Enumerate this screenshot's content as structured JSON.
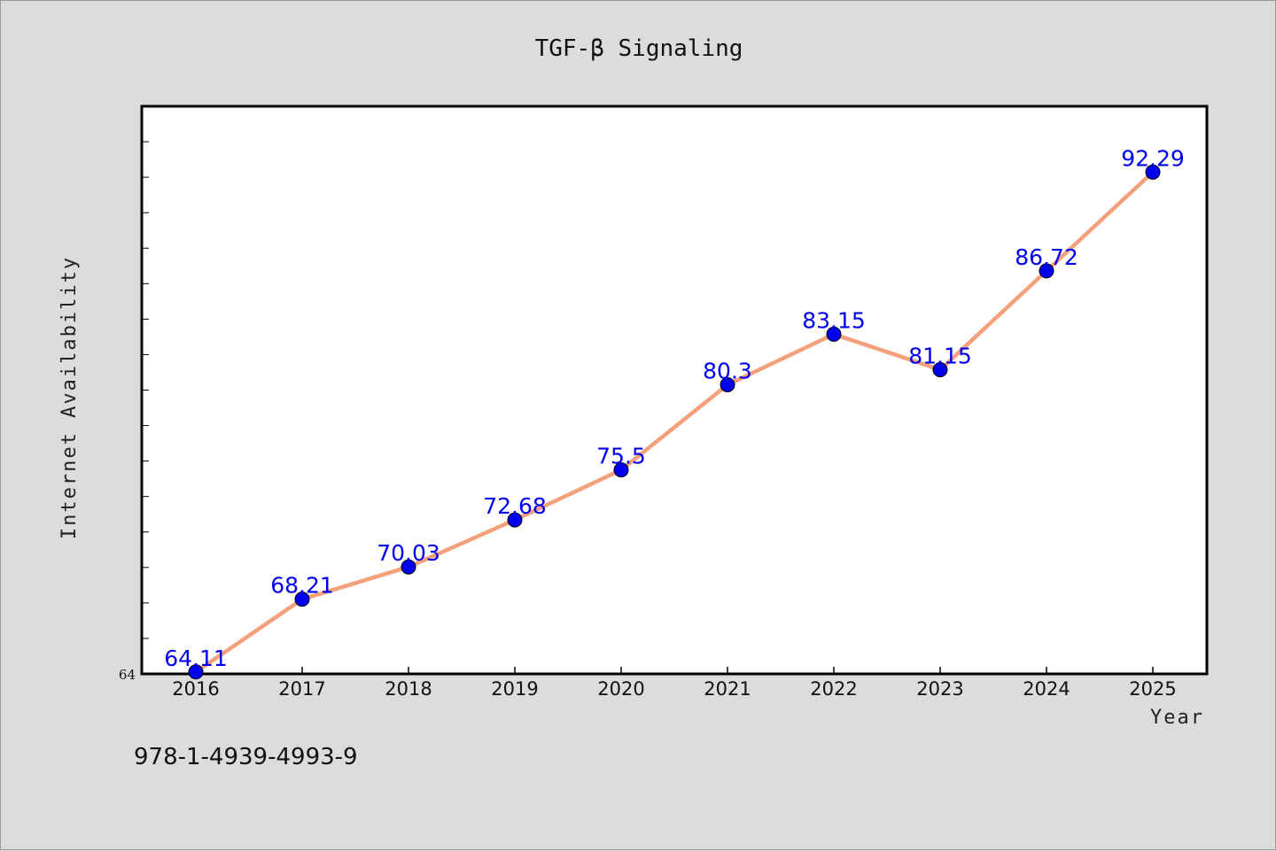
{
  "chart_data": {
    "type": "line",
    "title": "TGF-β Signaling",
    "xlabel": "Year",
    "ylabel": "Internet Availability",
    "categories": [
      "2016",
      "2017",
      "2018",
      "2019",
      "2020",
      "2021",
      "2022",
      "2023",
      "2024",
      "2025"
    ],
    "series": [
      {
        "values": [
          64.11,
          68.21,
          70.03,
          72.68,
          75.5,
          80.3,
          83.15,
          81.15,
          86.72,
          92.29
        ],
        "labels": [
          "64.11",
          "68.21",
          "70.03",
          "72.68",
          "75.5",
          "80.3",
          "83.15",
          "81.15",
          "86.72",
          "92.29"
        ],
        "line_color": "#f4a07a",
        "marker_color": "#0000ee",
        "label_color": "#0000ee"
      }
    ],
    "yticks": [
      "64"
    ],
    "ylim": [
      64,
      96
    ],
    "grid": false,
    "legend": "none"
  },
  "footer": {
    "isbn": "978-1-4939-4993-9"
  },
  "colors": {
    "background": "#dcdcdc",
    "plot_background": "#ffffff",
    "axis": "#000000"
  }
}
